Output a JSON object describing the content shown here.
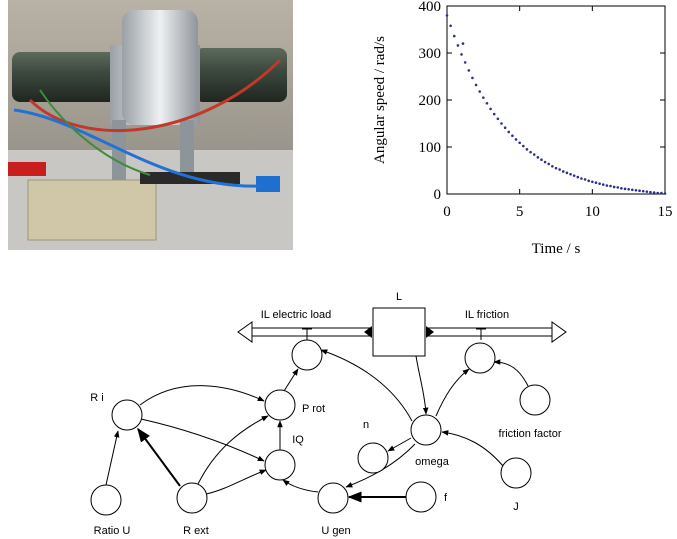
{
  "chart_data": {
    "type": "scatter",
    "x_label": "Time / s",
    "y_label": "Angular speed / rad/s",
    "x": [
      0,
      0.25,
      0.5,
      0.75,
      1,
      1.1,
      1.25,
      1.5,
      1.75,
      2,
      2.25,
      2.5,
      2.75,
      3,
      3.25,
      3.5,
      3.75,
      4,
      4.25,
      4.5,
      4.75,
      5,
      5.25,
      5.5,
      5.75,
      6,
      6.25,
      6.5,
      6.75,
      7,
      7.25,
      7.5,
      7.75,
      8,
      8.25,
      8.5,
      8.75,
      9,
      9.25,
      9.5,
      9.75,
      10,
      10.25,
      10.5,
      10.75,
      11,
      11.25,
      11.5,
      11.75,
      12,
      12.25,
      12.5,
      12.75,
      13,
      13.25,
      13.5,
      13.75,
      14,
      14.25,
      14.5,
      14.75,
      15
    ],
    "values": [
      380,
      358,
      336,
      316,
      297,
      320,
      280,
      263,
      247,
      232,
      218,
      205,
      193,
      181,
      170,
      160,
      150,
      141,
      132,
      124,
      116,
      109,
      102,
      95,
      89,
      84,
      78,
      73,
      68,
      64,
      59,
      55,
      52,
      48,
      45,
      42,
      39,
      36,
      33,
      31,
      28,
      26,
      24,
      22,
      20,
      18,
      17,
      15,
      14,
      12,
      11,
      10,
      9,
      8,
      7,
      6,
      5,
      4,
      3,
      2,
      2,
      1
    ],
    "color": "#2b2f8f",
    "xlim": [
      0,
      15
    ],
    "ylim": [
      0,
      400
    ],
    "xticks": [
      0,
      5,
      10,
      15
    ],
    "yticks": [
      0,
      100,
      200,
      300,
      400
    ]
  },
  "diagram": {
    "stock": {
      "label": "L"
    },
    "flows": [
      {
        "label": "IL electric load"
      },
      {
        "label": "IL friction"
      }
    ],
    "nodes": [
      {
        "label": "R i"
      },
      {
        "label": "P rot"
      },
      {
        "label": "IQ"
      },
      {
        "label": "n"
      },
      {
        "label": "omega"
      },
      {
        "label": "friction factor"
      },
      {
        "label": "Ratio U"
      },
      {
        "label": "R ext"
      },
      {
        "label": "U gen"
      },
      {
        "label": "f"
      },
      {
        "label": "J"
      }
    ]
  }
}
